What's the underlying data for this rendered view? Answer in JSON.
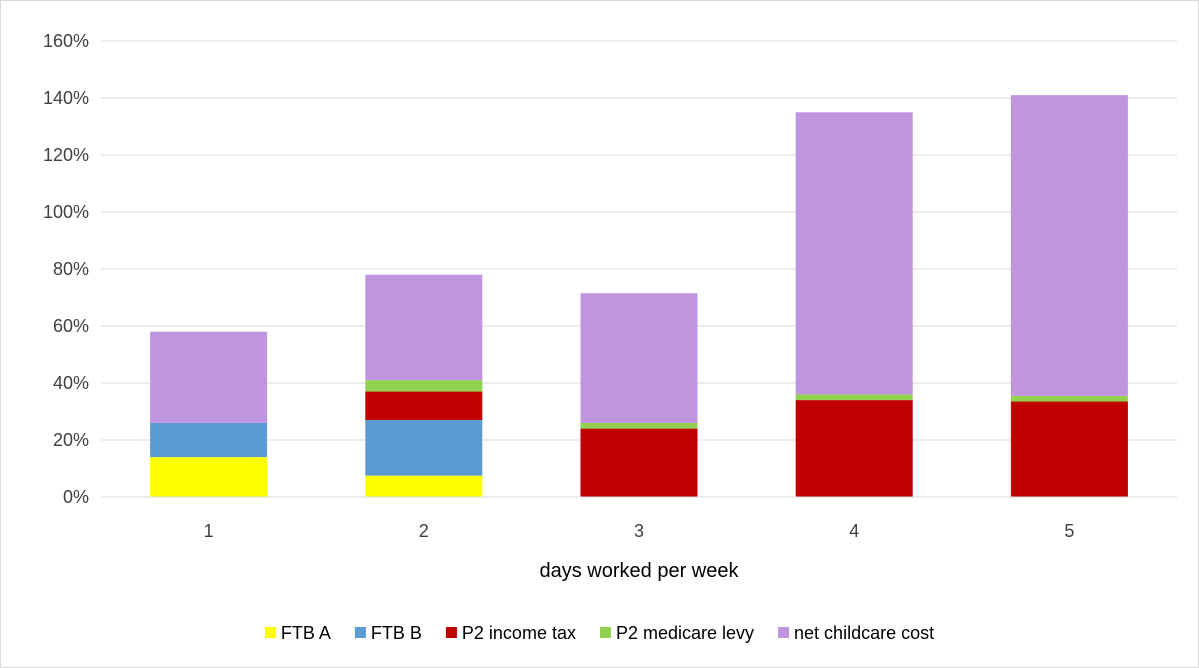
{
  "chart_data": {
    "type": "bar",
    "stacked": true,
    "title": "",
    "xlabel": "days worked per week",
    "ylabel": "",
    "categories": [
      "1",
      "2",
      "3",
      "4",
      "5"
    ],
    "ylim": [
      0,
      1.6
    ],
    "yticks": [
      0,
      0.2,
      0.4,
      0.6,
      0.8,
      1.0,
      1.2,
      1.4,
      1.6
    ],
    "ytick_labels": [
      "0%",
      "20%",
      "40%",
      "60%",
      "80%",
      "100%",
      "120%",
      "140%",
      "160%"
    ],
    "grid": true,
    "legend_position": "bottom",
    "series": [
      {
        "name": "FTB A",
        "color": "#ffff00",
        "values": [
          0.14,
          0.075,
          0,
          0,
          0
        ]
      },
      {
        "name": "FTB B",
        "color": "#5b9bd5",
        "values": [
          0.12,
          0.195,
          0,
          0,
          0
        ]
      },
      {
        "name": "P2 income tax",
        "color": "#c00000",
        "values": [
          0,
          0.1,
          0.24,
          0.34,
          0.335
        ]
      },
      {
        "name": "P2 medicare levy",
        "color": "#92d050",
        "values": [
          0,
          0.04,
          0.02,
          0.02,
          0.02
        ]
      },
      {
        "name": "net childcare cost",
        "color": "#c095e0",
        "values": [
          0.32,
          0.37,
          0.455,
          0.99,
          1.055
        ]
      }
    ]
  }
}
